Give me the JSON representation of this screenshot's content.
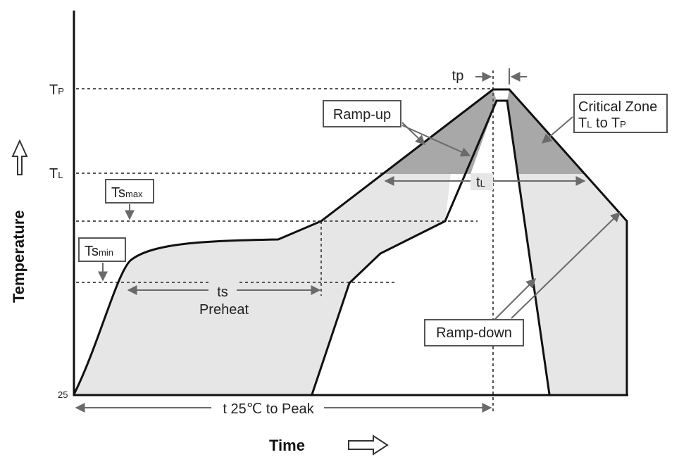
{
  "axes": {
    "y_title": "Temperature",
    "x_title": "Time",
    "origin_label": "25"
  },
  "levels": {
    "tp": {
      "main": "T",
      "sub": "P"
    },
    "tl": {
      "main": "T",
      "sub": "L"
    }
  },
  "callouts": {
    "ts_max": {
      "main": "Ts",
      "sub": "max"
    },
    "ts_min": {
      "main": "Ts",
      "sub": "min"
    },
    "ramp_up": "Ramp-up",
    "ramp_down": "Ramp-down",
    "critical_zone": {
      "line1": "Critical Zone",
      "line2_a": "T",
      "line2_a_sub": "L",
      "line2_b": " to T",
      "line2_b_sub": "P"
    }
  },
  "dimensions": {
    "tp": "tp",
    "tl": {
      "main": "t",
      "sub": "L"
    },
    "ts": "ts",
    "preheat": "Preheat",
    "t25_to_peak": "t 25℃ to Peak"
  },
  "colors": {
    "line": "#111111",
    "light_fill": "#e6e6e6",
    "critical_fill": "#a8a8a8",
    "arrow": "#6a6a6a",
    "dotted": "#555555"
  }
}
